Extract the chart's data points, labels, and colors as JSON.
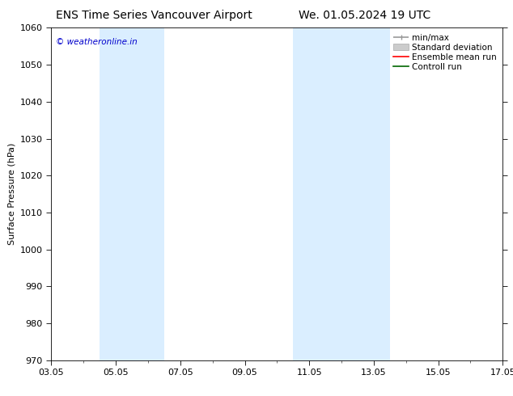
{
  "title_left": "ENS Time Series Vancouver Airport",
  "title_right": "We. 01.05.2024 19 UTC",
  "ylabel": "Surface Pressure (hPa)",
  "ylim": [
    970,
    1060
  ],
  "yticks": [
    970,
    980,
    990,
    1000,
    1010,
    1020,
    1030,
    1040,
    1050,
    1060
  ],
  "xtick_labels": [
    "03.05",
    "05.05",
    "07.05",
    "09.05",
    "11.05",
    "13.05",
    "15.05",
    "17.05"
  ],
  "xtick_positions": [
    0,
    2,
    4,
    6,
    8,
    10,
    12,
    14
  ],
  "xlim": [
    0,
    14
  ],
  "blue_bands": [
    {
      "xstart": 1.5,
      "xend": 3.5
    },
    {
      "xstart": 7.5,
      "xend": 10.5
    }
  ],
  "blue_band_color": "#daeeff",
  "watermark": "© weatheronline.in",
  "watermark_color": "#0000cc",
  "background_color": "#ffffff",
  "plot_bg_color": "#ffffff",
  "legend_items": [
    {
      "label": "min/max",
      "color": "#999999",
      "type": "line"
    },
    {
      "label": "Standard deviation",
      "color": "#cccccc",
      "type": "patch"
    },
    {
      "label": "Ensemble mean run",
      "color": "#ff0000",
      "type": "line"
    },
    {
      "label": "Controll run",
      "color": "#006600",
      "type": "line"
    }
  ],
  "title_fontsize": 10,
  "axis_label_fontsize": 8,
  "tick_fontsize": 8,
  "legend_fontsize": 7.5
}
